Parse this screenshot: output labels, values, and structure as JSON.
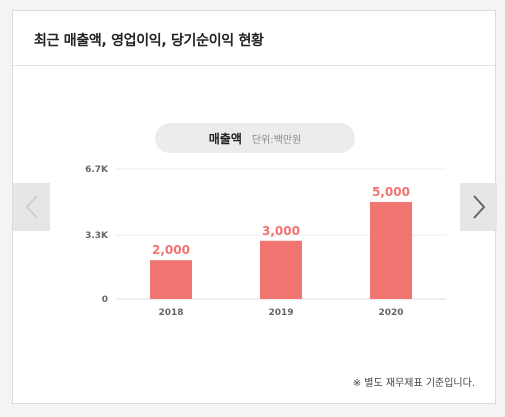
{
  "header": {
    "title": "최근 매출액, 영업이익, 당기순이익 현황"
  },
  "selector": {
    "metric": "매출액",
    "unit": "단위:백만원"
  },
  "nav": {
    "prev_icon": "chevron-left-icon",
    "next_icon": "chevron-right-icon"
  },
  "footnote": "※ 별도 재무제표 기준입니다.",
  "colors": {
    "bar": "#f07470",
    "label": "#f07470",
    "prev_arrow": "#cfcfcf",
    "next_arrow": "#666666"
  },
  "chart_data": {
    "type": "bar",
    "categories": [
      "2018",
      "2019",
      "2020"
    ],
    "values": [
      2000,
      3000,
      5000
    ],
    "value_labels": [
      "2,000",
      "3,000",
      "5,000"
    ],
    "y_ticks": [
      0,
      3300,
      6700
    ],
    "y_tick_labels": [
      "0",
      "3.3K",
      "6.7K"
    ],
    "ylim": [
      0,
      6700
    ],
    "grid": true,
    "title": "",
    "xlabel": "",
    "ylabel": ""
  }
}
